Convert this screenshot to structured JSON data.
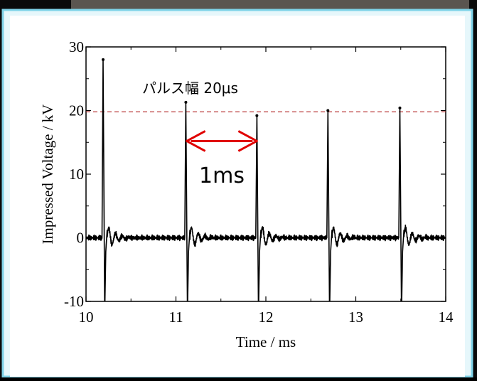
{
  "chart_data": {
    "type": "line",
    "xlabel": "Time / ms",
    "ylabel": "Impressed Voltage / kV",
    "xlim": [
      10,
      14
    ],
    "ylim": [
      -10,
      30
    ],
    "x_ticks": [
      "10",
      "11",
      "12",
      "13",
      "14"
    ],
    "y_ticks": [
      "-10",
      "0",
      "10",
      "20",
      "30"
    ],
    "annotations": {
      "pulse_width": "パルス幅 20μs",
      "interval": "1ms"
    },
    "reference_line": {
      "y": 19.8,
      "color": "#b02020",
      "style": "dashed"
    },
    "interval_arrow": {
      "x_start": 11.12,
      "x_end": 11.9,
      "y": 15.2,
      "color": "#e00000"
    },
    "pulses": [
      {
        "x": 10.19,
        "peak": 28.0
      },
      {
        "x": 11.11,
        "peak": 21.3
      },
      {
        "x": 11.9,
        "peak": 19.2
      },
      {
        "x": 12.69,
        "peak": 20.0
      },
      {
        "x": 13.49,
        "peak": 20.4
      }
    ],
    "baseline": 0,
    "grid": false,
    "colors": {
      "trace": "#000000",
      "background": "#ffffff",
      "frame_border": "#7fd3e8"
    }
  }
}
